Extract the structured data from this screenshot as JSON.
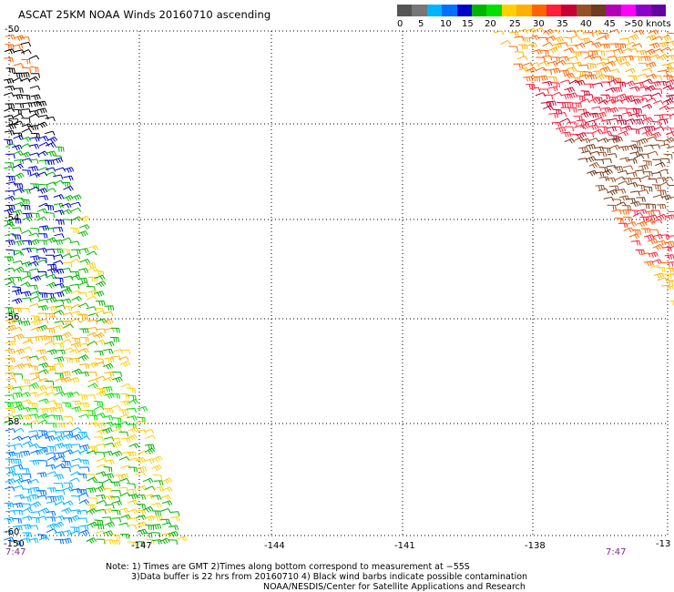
{
  "title": "ASCAT 25KM NOAA Winds 20160710 ascending",
  "legend": {
    "colors": [
      "#555555",
      "#777777",
      "#00b4ff",
      "#0070ff",
      "#0000c8",
      "#00b400",
      "#00e000",
      "#ffd000",
      "#ffb000",
      "#ff6400",
      "#ff1e3c",
      "#c80032",
      "#965028",
      "#6e3c1e",
      "#b400b4",
      "#ff00ff",
      "#8c00c8",
      "#6400a0"
    ],
    "labels": [
      "0",
      "5",
      "10",
      "15",
      "20",
      "25",
      "30",
      "35",
      "40",
      "45",
      ">50 knots"
    ]
  },
  "axes": {
    "lat_labels": [
      "-50",
      "-52",
      "-54",
      "-56",
      "-58",
      "-60"
    ],
    "lon_labels": [
      "-150",
      "-147",
      "-144",
      "-141",
      "-138",
      "-13"
    ]
  },
  "times": {
    "left": "7:47",
    "right": "7:47"
  },
  "notes": {
    "line1": "Note: 1) Times are GMT 2)Times along bottom correspond to measurement at −55S",
    "line2": "3)Data buffer is 22 hrs from 20160710 4) Black wind barbs indicate possible contamination",
    "line3": "NOAA/NESDIS/Center for Satellite Applications and Research"
  }
}
